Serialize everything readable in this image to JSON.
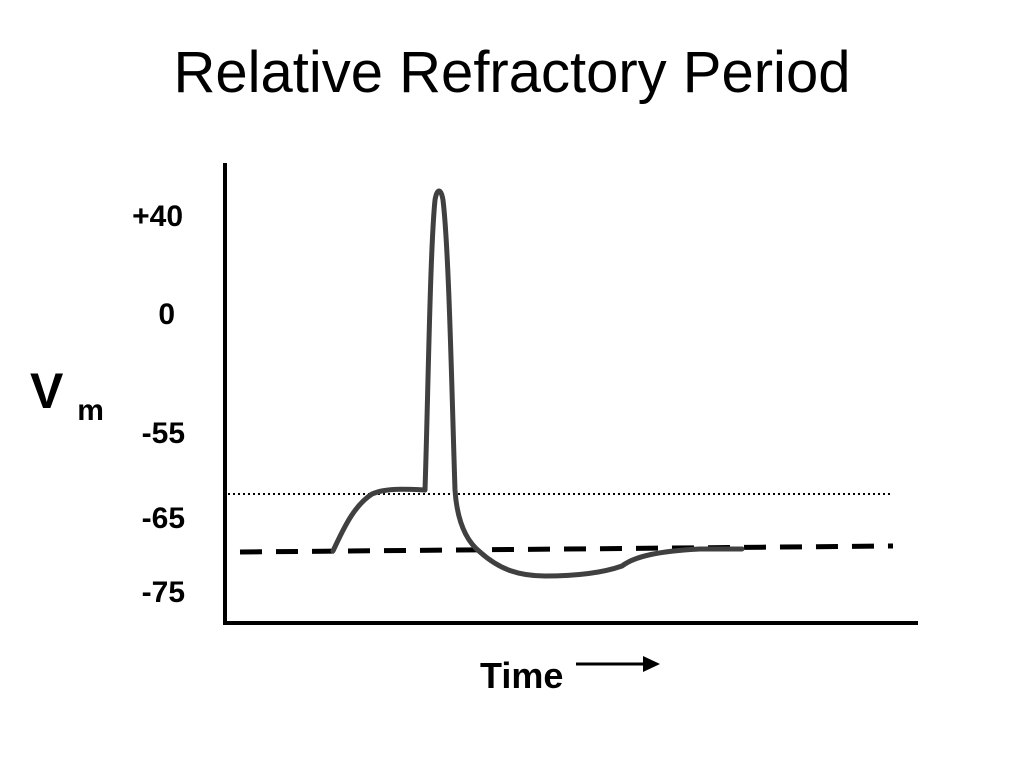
{
  "title": "Relative Refractory Period",
  "y_axis": {
    "label_main": "V",
    "label_sub": "m",
    "ticks": [
      {
        "label": "+40",
        "value": 40
      },
      {
        "label": "0",
        "value": 0
      },
      {
        "label": "-55",
        "value": -55
      },
      {
        "label": "-65",
        "value": -65
      },
      {
        "label": "-75",
        "value": -75
      }
    ]
  },
  "x_axis": {
    "label": "Time"
  },
  "colors": {
    "trace": "#404040",
    "axes": "#000000",
    "threshold_line": "#000000",
    "resting_line": "#000000"
  }
}
